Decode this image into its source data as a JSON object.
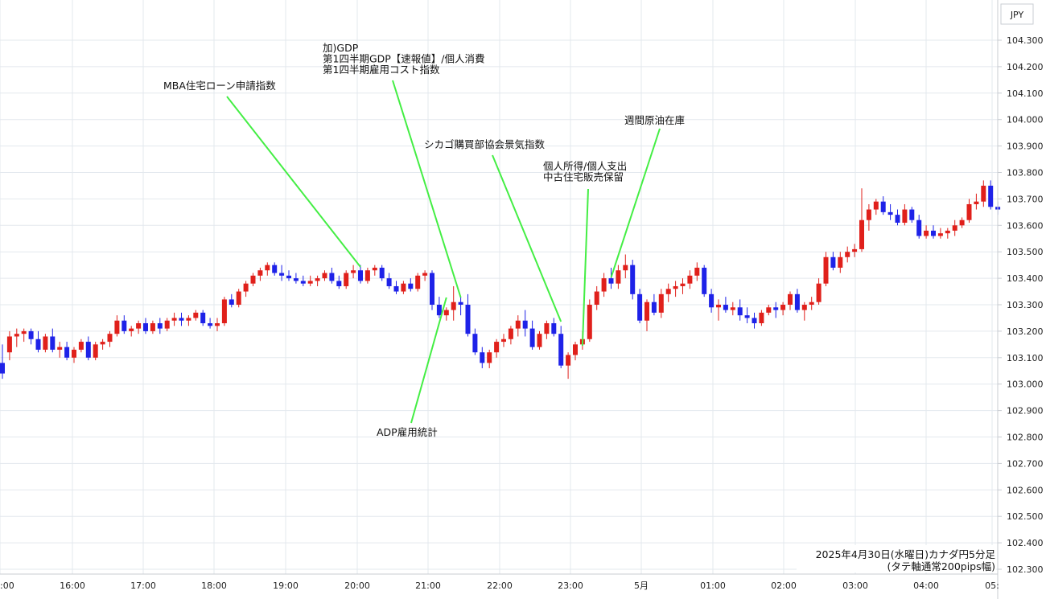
{
  "chart_data": {
    "type": "candlestick",
    "currency": "JPY",
    "caption_line1": "2025年4月30日(水曜日)カナダ円5分足",
    "caption_line2": "(タテ軸通常200pips幅)",
    "ylim": [
      102.3,
      104.3
    ],
    "y_ticks": [
      "104.300",
      "104.200",
      "104.100",
      "104.000",
      "103.900",
      "103.800",
      "103.700",
      "103.600",
      "103.500",
      "103.400",
      "103.300",
      "103.200",
      "103.100",
      "103.000",
      "102.900",
      "102.800",
      "102.700",
      "102.600",
      "102.500",
      "102.400",
      "102.300"
    ],
    "x_ticks": [
      ":00",
      "16:00",
      "17:00",
      "18:00",
      "19:00",
      "20:00",
      "21:00",
      "22:00",
      "23:00",
      "5月",
      "01:00",
      "02:00",
      "03:00",
      "04:00",
      "05:"
    ],
    "colors": {
      "up": "#e0201b",
      "down": "#1e22e8",
      "annotation_line": "#44ee44",
      "grid": "#e3e8ee"
    },
    "candles": [
      [
        103.08,
        103.15,
        103.02,
        103.04
      ],
      [
        103.12,
        103.2,
        103.09,
        103.18
      ],
      [
        103.18,
        103.21,
        103.14,
        103.19
      ],
      [
        103.19,
        103.21,
        103.16,
        103.2
      ],
      [
        103.2,
        103.21,
        103.15,
        103.17
      ],
      [
        103.17,
        103.2,
        103.12,
        103.13
      ],
      [
        103.13,
        103.19,
        103.12,
        103.18
      ],
      [
        103.18,
        103.21,
        103.12,
        103.13
      ],
      [
        103.13,
        103.16,
        103.1,
        103.14
      ],
      [
        103.14,
        103.16,
        103.09,
        103.1
      ],
      [
        103.1,
        103.14,
        103.08,
        103.13
      ],
      [
        103.13,
        103.17,
        103.12,
        103.16
      ],
      [
        103.16,
        103.18,
        103.09,
        103.1
      ],
      [
        103.1,
        103.16,
        103.09,
        103.15
      ],
      [
        103.15,
        103.17,
        103.13,
        103.16
      ],
      [
        103.16,
        103.2,
        103.14,
        103.19
      ],
      [
        103.19,
        103.26,
        103.18,
        103.24
      ],
      [
        103.24,
        103.26,
        103.19,
        103.2
      ],
      [
        103.2,
        103.22,
        103.18,
        103.21
      ],
      [
        103.21,
        103.24,
        103.19,
        103.23
      ],
      [
        103.23,
        103.25,
        103.19,
        103.2
      ],
      [
        103.2,
        103.24,
        103.19,
        103.23
      ],
      [
        103.23,
        103.25,
        103.19,
        103.21
      ],
      [
        103.21,
        103.25,
        103.2,
        103.24
      ],
      [
        103.24,
        103.27,
        103.22,
        103.25
      ],
      [
        103.25,
        103.27,
        103.22,
        103.24
      ],
      [
        103.24,
        103.26,
        103.22,
        103.25
      ],
      [
        103.25,
        103.28,
        103.24,
        103.27
      ],
      [
        103.27,
        103.28,
        103.22,
        103.23
      ],
      [
        103.23,
        103.25,
        103.21,
        103.22
      ],
      [
        103.22,
        103.25,
        103.2,
        103.23
      ],
      [
        103.23,
        103.33,
        103.22,
        103.32
      ],
      [
        103.32,
        103.34,
        103.29,
        103.3
      ],
      [
        103.3,
        103.36,
        103.29,
        103.35
      ],
      [
        103.35,
        103.39,
        103.33,
        103.38
      ],
      [
        103.38,
        103.42,
        103.37,
        103.41
      ],
      [
        103.41,
        103.44,
        103.39,
        103.43
      ],
      [
        103.43,
        103.46,
        103.41,
        103.45
      ],
      [
        103.45,
        103.46,
        103.41,
        103.42
      ],
      [
        103.42,
        103.45,
        103.39,
        103.41
      ],
      [
        103.41,
        103.43,
        103.39,
        103.4
      ],
      [
        103.4,
        103.42,
        103.38,
        103.39
      ],
      [
        103.39,
        103.41,
        103.37,
        103.38
      ],
      [
        103.38,
        103.41,
        103.37,
        103.39
      ],
      [
        103.39,
        103.41,
        103.37,
        103.4
      ],
      [
        103.4,
        103.43,
        103.39,
        103.42
      ],
      [
        103.42,
        103.44,
        103.38,
        103.39
      ],
      [
        103.39,
        103.41,
        103.36,
        103.37
      ],
      [
        103.37,
        103.43,
        103.36,
        103.42
      ],
      [
        103.42,
        103.45,
        103.4,
        103.43
      ],
      [
        103.43,
        103.45,
        103.38,
        103.39
      ],
      [
        103.39,
        103.44,
        103.38,
        103.43
      ],
      [
        103.43,
        103.45,
        103.41,
        103.44
      ],
      [
        103.44,
        103.45,
        103.39,
        103.4
      ],
      [
        103.4,
        103.42,
        103.36,
        103.37
      ],
      [
        103.37,
        103.39,
        103.34,
        103.35
      ],
      [
        103.35,
        103.39,
        103.34,
        103.38
      ],
      [
        103.38,
        103.4,
        103.35,
        103.36
      ],
      [
        103.36,
        103.42,
        103.35,
        103.41
      ],
      [
        103.41,
        103.43,
        103.39,
        103.42
      ],
      [
        103.42,
        103.43,
        103.28,
        103.3
      ],
      [
        103.3,
        103.33,
        103.25,
        103.26
      ],
      [
        103.26,
        103.29,
        103.24,
        103.28
      ],
      [
        103.28,
        103.37,
        103.24,
        103.31
      ],
      [
        103.31,
        103.33,
        103.26,
        103.3
      ],
      [
        103.3,
        103.34,
        103.18,
        103.19
      ],
      [
        103.19,
        103.21,
        103.11,
        103.12
      ],
      [
        103.12,
        103.14,
        103.06,
        103.08
      ],
      [
        103.08,
        103.13,
        103.06,
        103.12
      ],
      [
        103.12,
        103.17,
        103.1,
        103.16
      ],
      [
        103.16,
        103.19,
        103.14,
        103.17
      ],
      [
        103.17,
        103.22,
        103.15,
        103.21
      ],
      [
        103.21,
        103.26,
        103.18,
        103.24
      ],
      [
        103.24,
        103.28,
        103.18,
        103.21
      ],
      [
        103.21,
        103.24,
        103.13,
        103.14
      ],
      [
        103.14,
        103.2,
        103.13,
        103.19
      ],
      [
        103.19,
        103.24,
        103.17,
        103.23
      ],
      [
        103.23,
        103.25,
        103.18,
        103.19
      ],
      [
        103.19,
        103.22,
        103.06,
        103.07
      ],
      [
        103.07,
        103.12,
        103.02,
        103.11
      ],
      [
        103.11,
        103.16,
        103.09,
        103.15
      ],
      [
        103.15,
        103.2,
        103.13,
        103.17
      ],
      [
        103.17,
        103.32,
        103.16,
        103.3
      ],
      [
        103.3,
        103.37,
        103.28,
        103.35
      ],
      [
        103.35,
        103.42,
        103.33,
        103.4
      ],
      [
        103.4,
        103.44,
        103.36,
        103.38
      ],
      [
        103.38,
        103.45,
        103.36,
        103.43
      ],
      [
        103.43,
        103.49,
        103.4,
        103.45
      ],
      [
        103.45,
        103.47,
        103.32,
        103.34
      ],
      [
        103.34,
        103.36,
        103.23,
        103.24
      ],
      [
        103.24,
        103.32,
        103.2,
        103.31
      ],
      [
        103.31,
        103.34,
        103.26,
        103.27
      ],
      [
        103.27,
        103.36,
        103.25,
        103.34
      ],
      [
        103.34,
        103.38,
        103.31,
        103.36
      ],
      [
        103.36,
        103.39,
        103.33,
        103.37
      ],
      [
        103.37,
        103.4,
        103.34,
        103.38
      ],
      [
        103.38,
        103.43,
        103.36,
        103.41
      ],
      [
        103.41,
        103.46,
        103.39,
        103.44
      ],
      [
        103.44,
        103.45,
        103.33,
        103.34
      ],
      [
        103.34,
        103.36,
        103.27,
        103.29
      ],
      [
        103.29,
        103.32,
        103.24,
        103.3
      ],
      [
        103.3,
        103.33,
        103.27,
        103.28
      ],
      [
        103.28,
        103.31,
        103.26,
        103.29
      ],
      [
        103.29,
        103.32,
        103.24,
        103.26
      ],
      [
        103.26,
        103.29,
        103.23,
        103.25
      ],
      [
        103.25,
        103.27,
        103.21,
        103.23
      ],
      [
        103.23,
        103.28,
        103.22,
        103.27
      ],
      [
        103.27,
        103.3,
        103.26,
        103.29
      ],
      [
        103.29,
        103.31,
        103.25,
        103.28
      ],
      [
        103.28,
        103.31,
        103.26,
        103.3
      ],
      [
        103.3,
        103.35,
        103.28,
        103.34
      ],
      [
        103.34,
        103.36,
        103.27,
        103.28
      ],
      [
        103.28,
        103.31,
        103.24,
        103.3
      ],
      [
        103.3,
        103.33,
        103.28,
        103.31
      ],
      [
        103.31,
        103.4,
        103.3,
        103.38
      ],
      [
        103.38,
        103.5,
        103.37,
        103.48
      ],
      [
        103.48,
        103.5,
        103.43,
        103.44
      ],
      [
        103.44,
        103.5,
        103.42,
        103.48
      ],
      [
        103.48,
        103.52,
        103.46,
        103.5
      ],
      [
        103.5,
        103.53,
        103.48,
        103.51
      ],
      [
        103.51,
        103.74,
        103.5,
        103.62
      ],
      [
        103.62,
        103.68,
        103.58,
        103.66
      ],
      [
        103.66,
        103.7,
        103.64,
        103.69
      ],
      [
        103.69,
        103.71,
        103.64,
        103.65
      ],
      [
        103.65,
        103.68,
        103.62,
        103.64
      ],
      [
        103.64,
        103.66,
        103.6,
        103.61
      ],
      [
        103.61,
        103.68,
        103.6,
        103.66
      ],
      [
        103.66,
        103.67,
        103.61,
        103.62
      ],
      [
        103.62,
        103.64,
        103.55,
        103.56
      ],
      [
        103.56,
        103.6,
        103.55,
        103.58
      ],
      [
        103.58,
        103.6,
        103.55,
        103.56
      ],
      [
        103.56,
        103.59,
        103.55,
        103.57
      ],
      [
        103.57,
        103.59,
        103.55,
        103.58
      ],
      [
        103.58,
        103.62,
        103.56,
        103.6
      ],
      [
        103.6,
        103.63,
        103.59,
        103.62
      ],
      [
        103.62,
        103.7,
        103.61,
        103.68
      ],
      [
        103.68,
        103.72,
        103.66,
        103.69
      ],
      [
        103.69,
        103.77,
        103.67,
        103.75
      ],
      [
        103.75,
        103.77,
        103.66,
        103.67
      ],
      [
        103.67,
        103.69,
        103.64,
        103.66
      ]
    ],
    "annotations": [
      {
        "lines": [
          "MBA住宅ローン申請指数"
        ],
        "candle": 50
      },
      {
        "lines": [
          "加)GDP",
          "第1四半期GDP【速報値】/個人消費",
          "第1四半期雇用コスト指数"
        ],
        "candle": 64
      },
      {
        "lines": [
          "シカゴ購買部協会景気指数"
        ],
        "candle": 78
      },
      {
        "lines": [
          "個人所得/個人支出",
          "中古住宅販売保留"
        ],
        "candle": 81
      },
      {
        "lines": [
          "週間原油在庫"
        ],
        "candle": 85
      },
      {
        "lines": [
          "ADP雇用統計"
        ],
        "candle": 62
      }
    ]
  }
}
